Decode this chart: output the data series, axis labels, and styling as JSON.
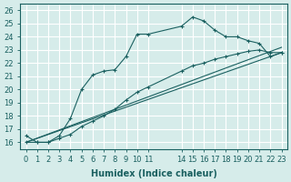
{
  "xlabel": "Humidex (Indice chaleur)",
  "bg_color": "#d6ecea",
  "grid_color": "#ffffff",
  "line_color": "#1a6060",
  "xlim": [
    -0.5,
    23.5
  ],
  "ylim": [
    15.5,
    26.5
  ],
  "yticks": [
    16,
    17,
    18,
    19,
    20,
    21,
    22,
    23,
    24,
    25,
    26
  ],
  "xtick_positions": [
    0,
    1,
    2,
    3,
    4,
    5,
    6,
    7,
    8,
    9,
    10,
    11,
    14,
    15,
    16,
    17,
    18,
    19,
    20,
    21,
    22,
    23
  ],
  "xtick_labels": [
    "0",
    "1",
    "2",
    "3",
    "4",
    "5",
    "6",
    "7",
    "8",
    "9",
    "10",
    "11",
    "14",
    "15",
    "16",
    "17",
    "18",
    "19",
    "20",
    "21",
    "22",
    "23"
  ],
  "curve1_x": [
    0,
    1,
    2,
    3,
    4,
    5,
    6,
    7,
    8,
    9,
    10,
    11,
    14,
    15,
    16,
    17,
    18,
    19,
    20,
    21,
    22,
    23
  ],
  "curve1_y": [
    16.5,
    16.0,
    16.0,
    16.5,
    17.8,
    20.0,
    21.1,
    21.4,
    21.5,
    22.5,
    24.2,
    24.2,
    24.8,
    25.5,
    25.2,
    24.5,
    24.0,
    24.0,
    23.7,
    23.5,
    22.5,
    22.8
  ],
  "curve2_x": [
    0,
    1,
    2,
    3,
    4,
    5,
    6,
    7,
    8,
    9,
    10,
    11,
    14,
    15,
    16,
    17,
    18,
    19,
    20,
    21,
    22,
    23
  ],
  "curve2_y": [
    16.0,
    16.0,
    16.0,
    16.3,
    16.6,
    17.2,
    17.6,
    18.0,
    18.5,
    19.2,
    19.8,
    20.2,
    21.4,
    21.8,
    22.0,
    22.3,
    22.5,
    22.7,
    22.9,
    23.0,
    22.8,
    22.8
  ],
  "line1_x": [
    0,
    23
  ],
  "line1_y": [
    16.0,
    22.8
  ],
  "line2_x": [
    0,
    23
  ],
  "line2_y": [
    16.0,
    23.2
  ]
}
